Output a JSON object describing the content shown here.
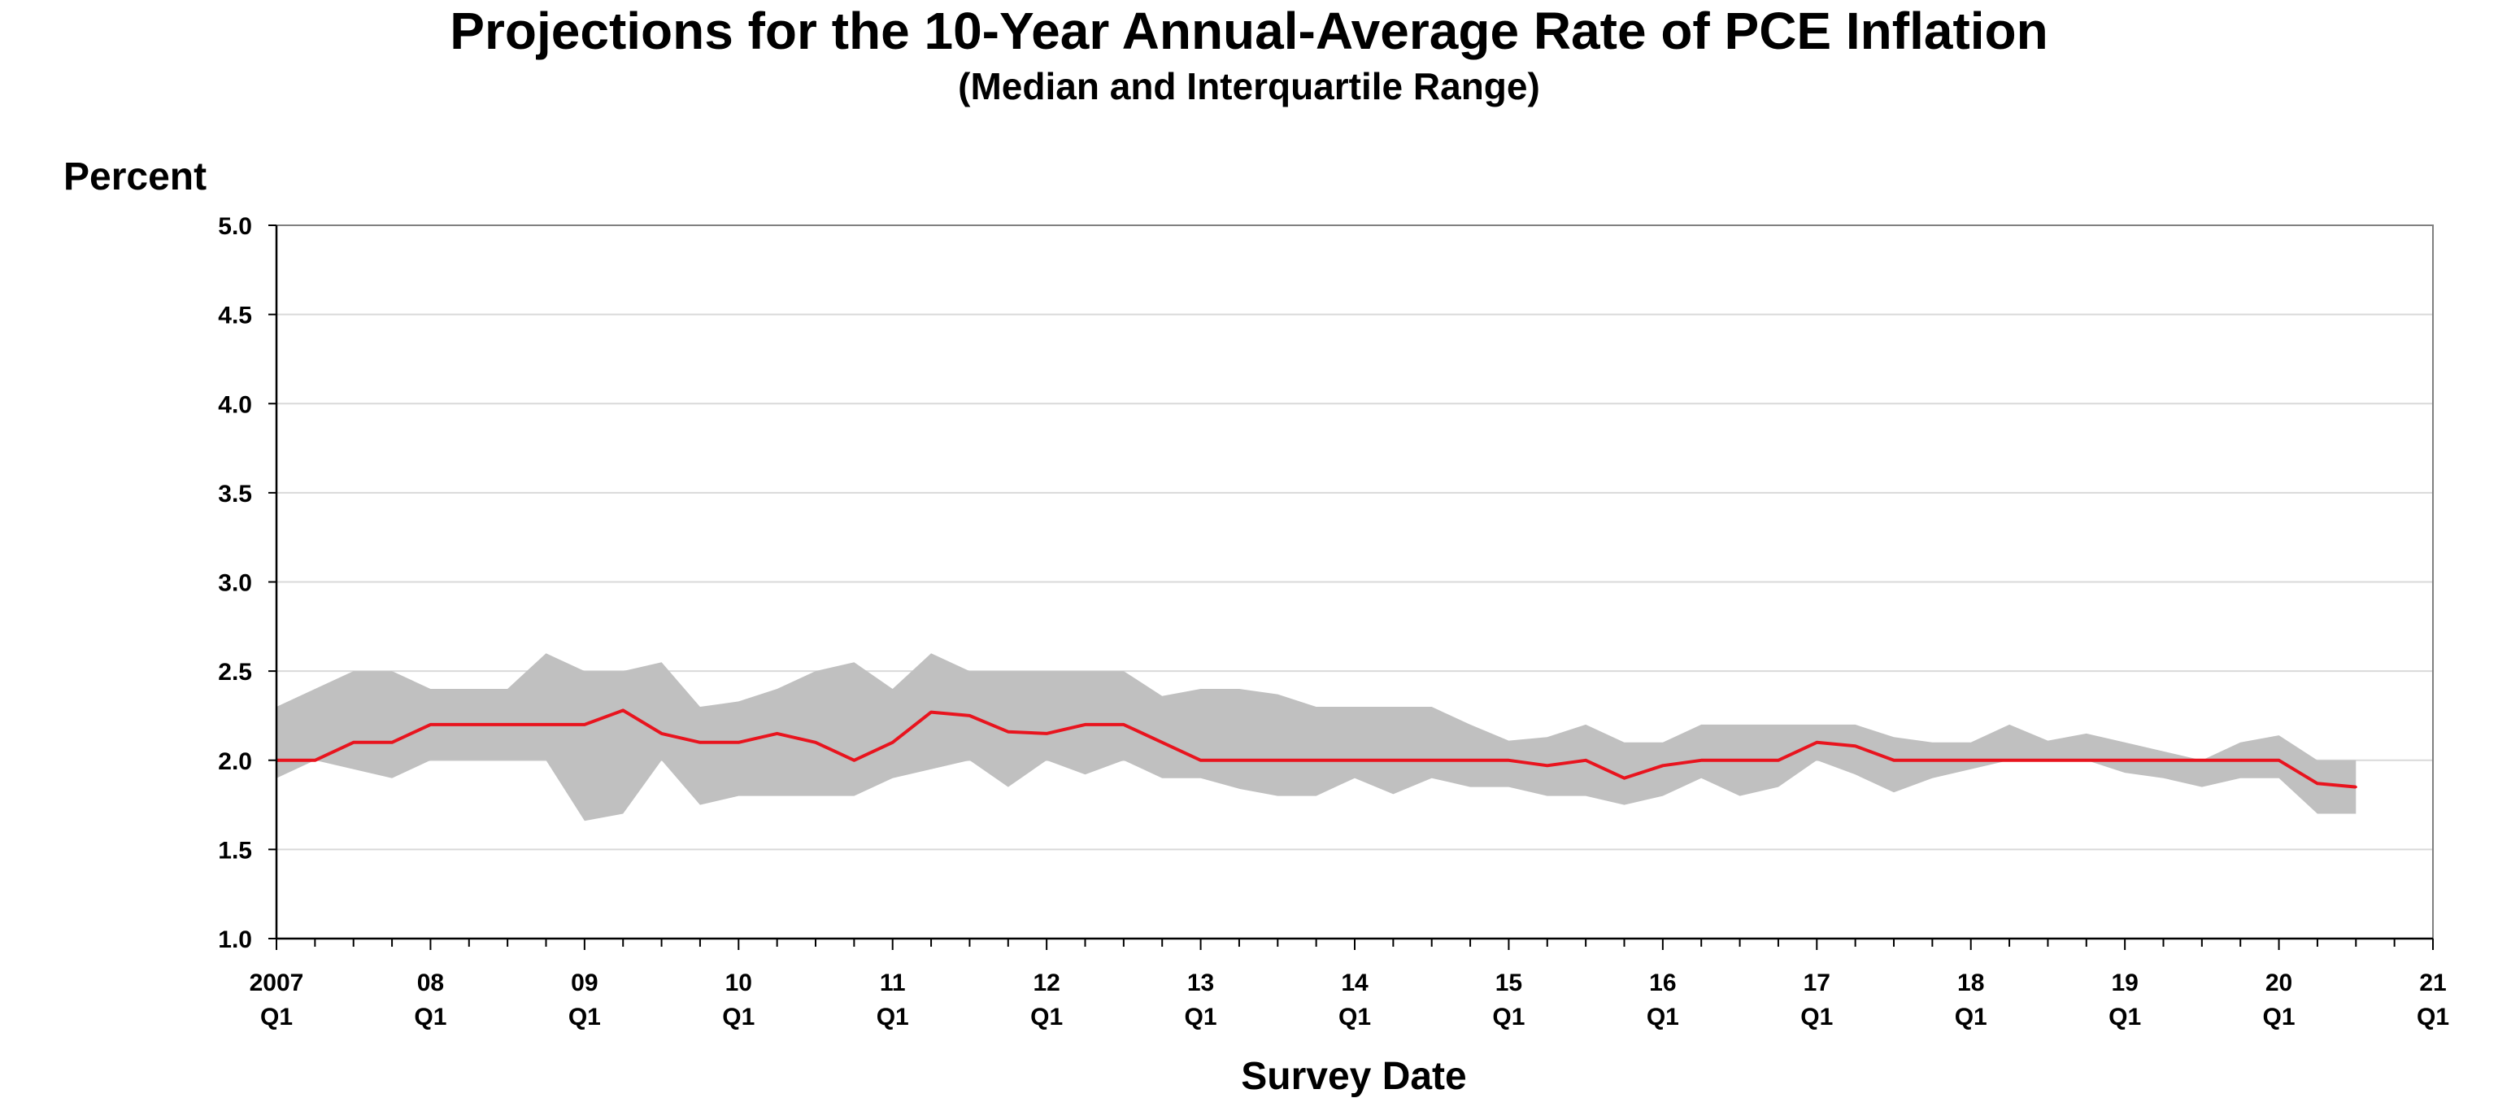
{
  "chart_data": {
    "type": "area",
    "title": "Projections for the 10-Year Annual-Average Rate of PCE Inflation",
    "subtitle": "(Median and Interquartile Range)",
    "ylabel": "Percent",
    "xlabel": "Survey Date",
    "ylim": [
      1.0,
      5.0
    ],
    "yticks": [
      "1.0",
      "1.5",
      "2.0",
      "2.5",
      "3.0",
      "3.5",
      "4.0",
      "4.5",
      "5.0"
    ],
    "xlim": [
      2007.0,
      2021.0
    ],
    "xticks": [
      {
        "year": "2007",
        "quarter": "Q1"
      },
      {
        "year": "08",
        "quarter": "Q1"
      },
      {
        "year": "09",
        "quarter": "Q1"
      },
      {
        "year": "10",
        "quarter": "Q1"
      },
      {
        "year": "11",
        "quarter": "Q1"
      },
      {
        "year": "12",
        "quarter": "Q1"
      },
      {
        "year": "13",
        "quarter": "Q1"
      },
      {
        "year": "14",
        "quarter": "Q1"
      },
      {
        "year": "15",
        "quarter": "Q1"
      },
      {
        "year": "16",
        "quarter": "Q1"
      },
      {
        "year": "17",
        "quarter": "Q1"
      },
      {
        "year": "18",
        "quarter": "Q1"
      },
      {
        "year": "19",
        "quarter": "Q1"
      },
      {
        "year": "20",
        "quarter": "Q1"
      },
      {
        "year": "21",
        "quarter": "Q1"
      }
    ],
    "grid": true,
    "colors": {
      "median": "#e8141e",
      "range": "#c0c0c0",
      "grid": "#d9d9d9",
      "axis": "#808080"
    },
    "x": [
      "2007 Q1",
      "2007 Q2",
      "2007 Q3",
      "2007 Q4",
      "2008 Q1",
      "2008 Q2",
      "2008 Q3",
      "2008 Q4",
      "2009 Q1",
      "2009 Q2",
      "2009 Q3",
      "2009 Q4",
      "2010 Q1",
      "2010 Q2",
      "2010 Q3",
      "2010 Q4",
      "2011 Q1",
      "2011 Q2",
      "2011 Q3",
      "2011 Q4",
      "2012 Q1",
      "2012 Q2",
      "2012 Q3",
      "2012 Q4",
      "2013 Q1",
      "2013 Q2",
      "2013 Q3",
      "2013 Q4",
      "2014 Q1",
      "2014 Q2",
      "2014 Q3",
      "2014 Q4",
      "2015 Q1",
      "2015 Q2",
      "2015 Q3",
      "2015 Q4",
      "2016 Q1",
      "2016 Q2",
      "2016 Q3",
      "2016 Q4",
      "2017 Q1",
      "2017 Q2",
      "2017 Q3",
      "2017 Q4",
      "2018 Q1",
      "2018 Q2",
      "2018 Q3",
      "2018 Q4",
      "2019 Q1",
      "2019 Q2",
      "2019 Q3",
      "2019 Q4",
      "2020 Q1",
      "2020 Q2",
      "2020 Q3"
    ],
    "series": [
      {
        "values": [
          2.0,
          2.0,
          2.1,
          2.1,
          2.2,
          2.2,
          2.2,
          2.2,
          2.2,
          2.28,
          2.15,
          2.1,
          2.1,
          2.15,
          2.1,
          2.0,
          2.1,
          2.27,
          2.25,
          2.16,
          2.15,
          2.2,
          2.2,
          2.1,
          2.0,
          2.0,
          2.0,
          2.0,
          2.0,
          2.0,
          2.0,
          2.0,
          2.0,
          1.97,
          2.0,
          1.9,
          1.97,
          2.0,
          2.0,
          2.0,
          2.1,
          2.08,
          2.0,
          2.0,
          2.0,
          2.0,
          2.0,
          2.0,
          2.0,
          2.0,
          2.0,
          2.0,
          2.0,
          1.87,
          1.85
        ]
      },
      {
        "values": [
          2.3,
          2.4,
          2.5,
          2.5,
          2.4,
          2.4,
          2.4,
          2.6,
          2.5,
          2.5,
          2.55,
          2.3,
          2.33,
          2.4,
          2.5,
          2.55,
          2.4,
          2.6,
          2.5,
          2.5,
          2.5,
          2.5,
          2.5,
          2.36,
          2.4,
          2.4,
          2.37,
          2.3,
          2.3,
          2.3,
          2.3,
          2.2,
          2.11,
          2.13,
          2.2,
          2.1,
          2.1,
          2.2,
          2.2,
          2.2,
          2.2,
          2.2,
          2.13,
          2.1,
          2.1,
          2.2,
          2.11,
          2.15,
          2.1,
          2.05,
          2.0,
          2.1,
          2.14,
          2.0,
          2.0
        ]
      },
      {
        "values": [
          1.9,
          2.0,
          1.95,
          1.9,
          2.0,
          2.0,
          2.0,
          2.0,
          1.66,
          1.7,
          2.0,
          1.75,
          1.8,
          1.8,
          1.8,
          1.8,
          1.9,
          1.95,
          2.0,
          1.85,
          2.0,
          1.92,
          2.0,
          1.9,
          1.9,
          1.84,
          1.8,
          1.8,
          1.9,
          1.81,
          1.9,
          1.85,
          1.85,
          1.8,
          1.8,
          1.75,
          1.8,
          1.9,
          1.8,
          1.85,
          2.0,
          1.92,
          1.82,
          1.9,
          1.95,
          2.0,
          2.0,
          2.0,
          1.93,
          1.9,
          1.85,
          1.9,
          1.9,
          1.7,
          1.7
        ]
      }
    ]
  }
}
